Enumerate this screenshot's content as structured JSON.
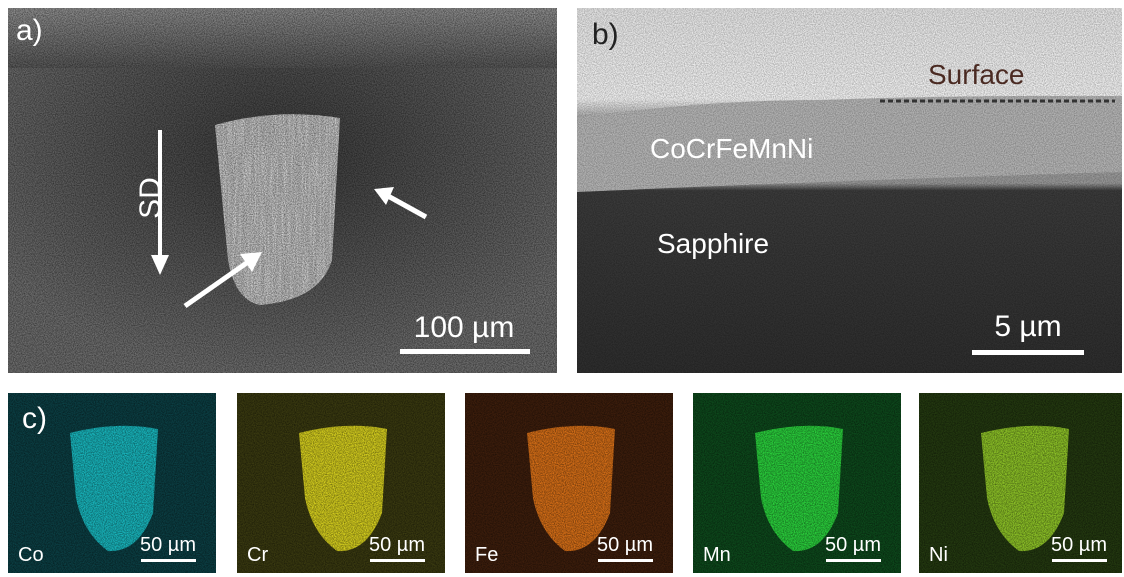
{
  "panel_a": {
    "label": "a)",
    "direction": "SD",
    "scale_bar": "100 µm"
  },
  "panel_b": {
    "label": "b)",
    "surface": "Surface",
    "layer": "CoCrFeMnNi",
    "substrate": "Sapphire",
    "scale_bar": "5 µm"
  },
  "panel_c": {
    "label": "c)",
    "maps": [
      {
        "element": "Co",
        "scale_bar": "50 µm"
      },
      {
        "element": "Cr",
        "scale_bar": "50 µm"
      },
      {
        "element": "Fe",
        "scale_bar": "50 µm"
      },
      {
        "element": "Mn",
        "scale_bar": "50 µm"
      },
      {
        "element": "Ni",
        "scale_bar": "50 µm"
      }
    ]
  }
}
